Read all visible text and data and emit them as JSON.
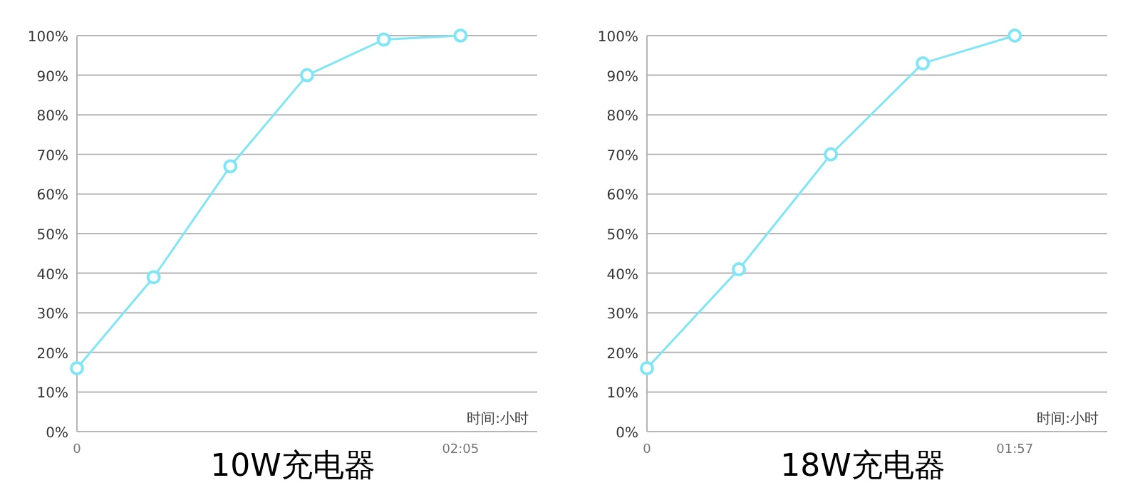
{
  "chart_data": [
    {
      "type": "line",
      "title": "10W充电器",
      "xlabel": "时间:小时",
      "x": [
        0,
        0.4167,
        0.8333,
        1.25,
        1.6667,
        2.0833
      ],
      "series": [
        {
          "color": "#80e6f5",
          "values": [
            16,
            39,
            67,
            90,
            99,
            100
          ]
        }
      ],
      "xlim": [
        0,
        2.5
      ],
      "xticks": [
        {
          "value": 0,
          "label": "0"
        },
        {
          "value": 2.0833,
          "label": "02:05"
        }
      ],
      "ylim": [
        0,
        100
      ],
      "yticks": [
        {
          "value": 0,
          "label": "0%"
        },
        {
          "value": 10,
          "label": "10%"
        },
        {
          "value": 20,
          "label": "20%"
        },
        {
          "value": 30,
          "label": "30%"
        },
        {
          "value": 40,
          "label": "40%"
        },
        {
          "value": 50,
          "label": "50%"
        },
        {
          "value": 60,
          "label": "60%"
        },
        {
          "value": 70,
          "label": "70%"
        },
        {
          "value": 80,
          "label": "80%"
        },
        {
          "value": 90,
          "label": "90%"
        },
        {
          "value": 100,
          "label": "100%"
        }
      ],
      "grid": "y",
      "marker": "circle",
      "line_style": "solid"
    },
    {
      "type": "line",
      "title": "18W充电器",
      "xlabel": "时间:小时",
      "x": [
        0,
        0.4875,
        0.975,
        1.4625,
        1.95
      ],
      "series": [
        {
          "color": "#80e6f5",
          "values": [
            16,
            41,
            70,
            93,
            100
          ]
        }
      ],
      "xlim": [
        0,
        2.44
      ],
      "xticks": [
        {
          "value": 0,
          "label": "0"
        },
        {
          "value": 1.95,
          "label": "01:57"
        }
      ],
      "ylim": [
        0,
        100
      ],
      "yticks": [
        {
          "value": 0,
          "label": "0%"
        },
        {
          "value": 10,
          "label": "10%"
        },
        {
          "value": 20,
          "label": "20%"
        },
        {
          "value": 30,
          "label": "30%"
        },
        {
          "value": 40,
          "label": "40%"
        },
        {
          "value": 50,
          "label": "50%"
        },
        {
          "value": 60,
          "label": "60%"
        },
        {
          "value": 70,
          "label": "70%"
        },
        {
          "value": 80,
          "label": "80%"
        },
        {
          "value": 90,
          "label": "90%"
        },
        {
          "value": 100,
          "label": "100%"
        }
      ],
      "grid": "y",
      "marker": "circle",
      "line_style": "solid"
    }
  ]
}
